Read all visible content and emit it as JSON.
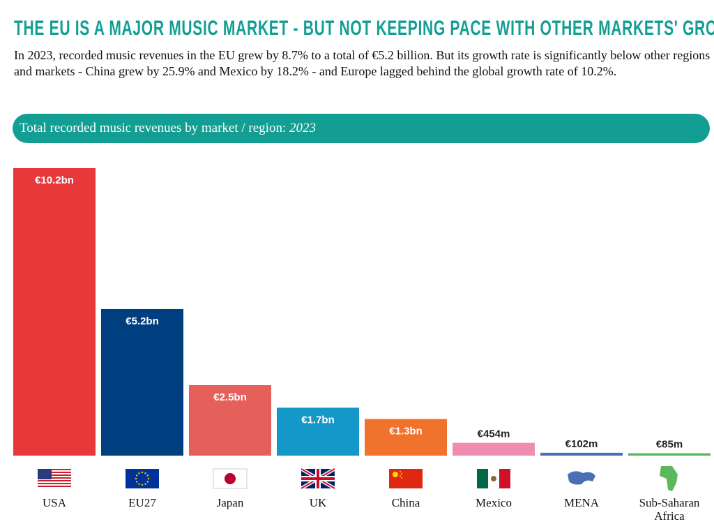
{
  "chart_data": {
    "type": "bar",
    "title": "THE EU IS A MAJOR MUSIC MARKET - BUT NOT KEEPING PACE WITH OTHER MARKETS' GROWTH",
    "subtitle": "In 2023, recorded music revenues in the EU grew by 8.7% to a  total of €5.2 billion. But its growth rate is significantly below other regions and markets - China grew by 25.9% and Mexico by 18.2% - and Europe lagged behind the global growth rate of 10.2%.",
    "chart_title": "Total recorded music revenues by market / region:",
    "chart_title_year": "2023",
    "categories": [
      "USA",
      "EU27",
      "Japan",
      "UK",
      "China",
      "Mexico",
      "MENA",
      "Sub-Saharan Africa"
    ],
    "values": [
      10.2,
      5.2,
      2.5,
      1.7,
      1.3,
      0.454,
      0.102,
      0.085
    ],
    "value_labels": [
      "€10.2bn",
      "€5.2bn",
      "€2.5bn",
      "€1.7bn",
      "€1.3bn",
      "€454m",
      "€102m",
      "€85m"
    ],
    "colors": [
      "#e8383a",
      "#003f7f",
      "#e6605b",
      "#1497c9",
      "#f0722c",
      "#f08cb2",
      "#4a6fb3",
      "#5cb85c"
    ]
  }
}
